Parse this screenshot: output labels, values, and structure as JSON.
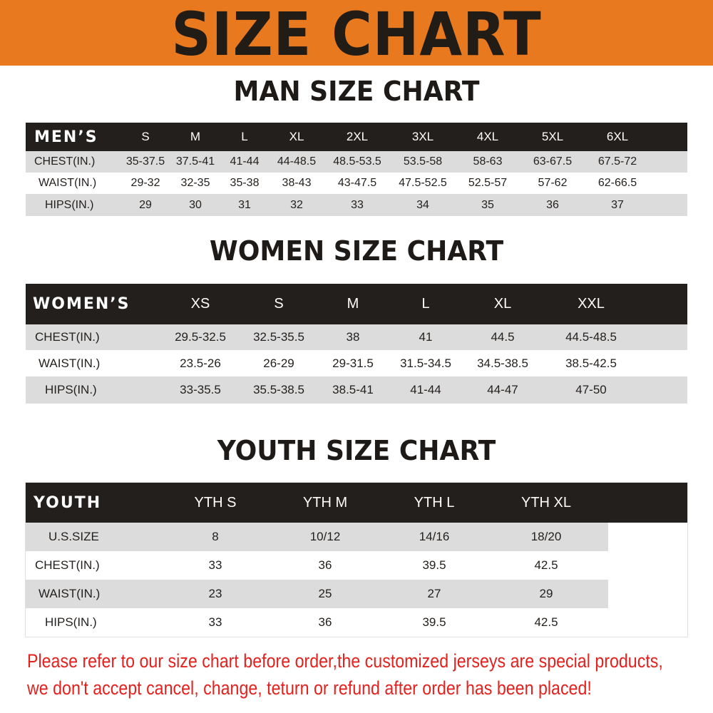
{
  "banner": {
    "title": "SIZE CHART",
    "color": "#E8791E"
  },
  "men": {
    "title": "MAN SIZE CHART",
    "header_label": "MEN’S",
    "sizes": [
      "S",
      "M",
      "L",
      "XL",
      "2XL",
      "3XL",
      "4XL",
      "5XL",
      "6XL"
    ],
    "rows": [
      {
        "label": "CHEST(IN.)",
        "values": [
          "35-37.5",
          "37.5-41",
          "41-44",
          "44-48.5",
          "48.5-53.5",
          "53.5-58",
          "58-63",
          "63-67.5",
          "67.5-72"
        ]
      },
      {
        "label": "WAIST(IN.)",
        "values": [
          "29-32",
          "32-35",
          "35-38",
          "38-43",
          "43-47.5",
          "47.5-52.5",
          "52.5-57",
          "57-62",
          "62-66.5"
        ]
      },
      {
        "label": "HIPS(IN.)",
        "values": [
          "29",
          "30",
          "31",
          "32",
          "33",
          "34",
          "35",
          "36",
          "37"
        ]
      }
    ]
  },
  "women": {
    "title": "WOMEN SIZE CHART",
    "header_label": "WOMEN’S",
    "sizes": [
      "XS",
      "S",
      "M",
      "L",
      "XL",
      "XXL"
    ],
    "rows": [
      {
        "label": "CHEST(IN.)",
        "values": [
          "29.5-32.5",
          "32.5-35.5",
          "38",
          "41",
          "44.5",
          "44.5-48.5"
        ]
      },
      {
        "label": "WAIST(IN.)",
        "values": [
          "23.5-26",
          "26-29",
          "29-31.5",
          "31.5-34.5",
          "34.5-38.5",
          "38.5-42.5"
        ]
      },
      {
        "label": "HIPS(IN.)",
        "values": [
          "33-35.5",
          "35.5-38.5",
          "38.5-41",
          "41-44",
          "44-47",
          "47-50"
        ]
      }
    ]
  },
  "youth": {
    "title": "YOUTH SIZE CHART",
    "header_label": "YOUTH",
    "sizes": [
      "YTH S",
      "YTH M",
      "YTH L",
      "YTH XL"
    ],
    "rows": [
      {
        "label": "U.S.SIZE",
        "values": [
          "8",
          "10/12",
          "14/16",
          "18/20"
        ]
      },
      {
        "label": "CHEST(IN.)",
        "values": [
          "33",
          "36",
          "39.5",
          "42.5"
        ]
      },
      {
        "label": "WAIST(IN.)",
        "values": [
          "23",
          "25",
          "27",
          "29"
        ]
      },
      {
        "label": "HIPS(IN.)",
        "values": [
          "33",
          "36",
          "39.5",
          "42.5"
        ]
      }
    ]
  },
  "notice": {
    "line1": "Please refer to our size chart before order,the customized jerseys are special products,",
    "line2": "we don't accept cancel, change, teturn or refund after order has been placed!",
    "color": "#E3211E"
  }
}
